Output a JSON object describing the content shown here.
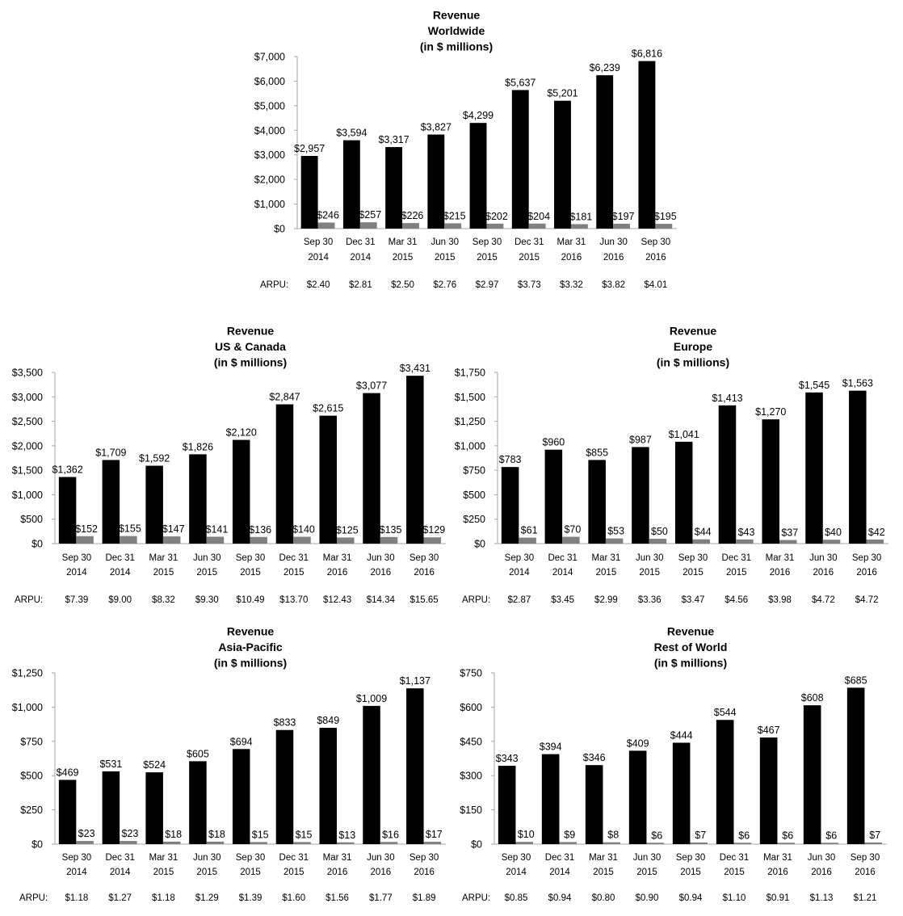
{
  "chart_data": [
    {
      "type": "bar",
      "title": [
        "Revenue",
        "Worldwide",
        "(in $ millions)"
      ],
      "categories": [
        [
          "Sep 30",
          "2014"
        ],
        [
          "Dec 31",
          "2014"
        ],
        [
          "Mar 31",
          "2015"
        ],
        [
          "Jun 30",
          "2015"
        ],
        [
          "Sep 30",
          "2015"
        ],
        [
          "Dec 31",
          "2015"
        ],
        [
          "Mar 31",
          "2016"
        ],
        [
          "Jun 30",
          "2016"
        ],
        [
          "Sep 30",
          "2016"
        ]
      ],
      "series": [
        {
          "values": [
            2957,
            3594,
            3317,
            3827,
            4299,
            5637,
            5201,
            6239,
            6816
          ],
          "labels": [
            "$2,957",
            "$3,594",
            "$3,317",
            "$3,827",
            "$4,299",
            "$5,637",
            "$5,201",
            "$6,239",
            "$6,816"
          ],
          "color": "#000000"
        },
        {
          "values": [
            246,
            257,
            226,
            215,
            202,
            204,
            181,
            197,
            195
          ],
          "labels": [
            "$246",
            "$257",
            "$226",
            "$215",
            "$202",
            "$204",
            "$181",
            "$197",
            "$195"
          ],
          "color": "#808080"
        }
      ],
      "ylim": [
        0,
        7000
      ],
      "yticks": [
        0,
        1000,
        2000,
        3000,
        4000,
        5000,
        6000,
        7000
      ],
      "ytick_labels": [
        "$0",
        "$1,000",
        "$2,000",
        "$3,000",
        "$4,000",
        "$5,000",
        "$6,000",
        "$7,000"
      ],
      "arpu_label": "ARPU:",
      "arpu": [
        "$2.40",
        "$2.81",
        "$2.50",
        "$2.76",
        "$2.97",
        "$3.73",
        "$3.32",
        "$3.82",
        "$4.01"
      ],
      "grid": false,
      "legend": "none"
    },
    {
      "type": "bar",
      "title": [
        "Revenue",
        "US & Canada",
        "(in $ millions)"
      ],
      "categories": [
        [
          "Sep 30",
          "2014"
        ],
        [
          "Dec 31",
          "2014"
        ],
        [
          "Mar 31",
          "2015"
        ],
        [
          "Jun 30",
          "2015"
        ],
        [
          "Sep 30",
          "2015"
        ],
        [
          "Dec 31",
          "2015"
        ],
        [
          "Mar 31",
          "2016"
        ],
        [
          "Jun 30",
          "2016"
        ],
        [
          "Sep 30",
          "2016"
        ]
      ],
      "series": [
        {
          "values": [
            1362,
            1709,
            1592,
            1826,
            2120,
            2847,
            2615,
            3077,
            3431
          ],
          "labels": [
            "$1,362",
            "$1,709",
            "$1,592",
            "$1,826",
            "$2,120",
            "$2,847",
            "$2,615",
            "$3,077",
            "$3,431"
          ],
          "color": "#000000"
        },
        {
          "values": [
            152,
            155,
            147,
            141,
            136,
            140,
            125,
            135,
            129
          ],
          "labels": [
            "$152",
            "$155",
            "$147",
            "$141",
            "$136",
            "$140",
            "$125",
            "$135",
            "$129"
          ],
          "color": "#808080"
        }
      ],
      "ylim": [
        0,
        3500
      ],
      "yticks": [
        0,
        500,
        1000,
        1500,
        2000,
        2500,
        3000,
        3500
      ],
      "ytick_labels": [
        "$0",
        "$500",
        "$1,000",
        "$1,500",
        "$2,000",
        "$2,500",
        "$3,000",
        "$3,500"
      ],
      "arpu_label": "ARPU:",
      "arpu": [
        "$7.39",
        "$9.00",
        "$8.32",
        "$9.30",
        "$10.49",
        "$13.70",
        "$12.43",
        "$14.34",
        "$15.65"
      ],
      "grid": false,
      "legend": "none"
    },
    {
      "type": "bar",
      "title": [
        "Revenue",
        "Europe",
        "(in $ millions)"
      ],
      "categories": [
        [
          "Sep 30",
          "2014"
        ],
        [
          "Dec 31",
          "2014"
        ],
        [
          "Mar 31",
          "2015"
        ],
        [
          "Jun 30",
          "2015"
        ],
        [
          "Sep 30",
          "2015"
        ],
        [
          "Dec 31",
          "2015"
        ],
        [
          "Mar 31",
          "2016"
        ],
        [
          "Jun 30",
          "2016"
        ],
        [
          "Sep 30",
          "2016"
        ]
      ],
      "series": [
        {
          "values": [
            783,
            960,
            855,
            987,
            1041,
            1413,
            1270,
            1545,
            1563
          ],
          "labels": [
            "$783",
            "$960",
            "$855",
            "$987",
            "$1,041",
            "$1,413",
            "$1,270",
            "$1,545",
            "$1,563"
          ],
          "color": "#000000"
        },
        {
          "values": [
            61,
            70,
            53,
            50,
            44,
            43,
            37,
            40,
            42
          ],
          "labels": [
            "$61",
            "$70",
            "$53",
            "$50",
            "$44",
            "$43",
            "$37",
            "$40",
            "$42"
          ],
          "color": "#808080"
        }
      ],
      "ylim": [
        0,
        1750
      ],
      "yticks": [
        0,
        250,
        500,
        750,
        1000,
        1250,
        1500,
        1750
      ],
      "ytick_labels": [
        "$0",
        "$250",
        "$500",
        "$750",
        "$1,000",
        "$1,250",
        "$1,500",
        "$1,750"
      ],
      "arpu_label": "ARPU:",
      "arpu": [
        "$2.87",
        "$3.45",
        "$2.99",
        "$3.36",
        "$3.47",
        "$4.56",
        "$3.98",
        "$4.72",
        "$4.72"
      ],
      "grid": false,
      "legend": "none"
    },
    {
      "type": "bar",
      "title": [
        "Revenue",
        "Asia-Pacific",
        "(in $ millions)"
      ],
      "categories": [
        [
          "Sep 30",
          "2014"
        ],
        [
          "Dec 31",
          "2014"
        ],
        [
          "Mar 31",
          "2015"
        ],
        [
          "Jun 30",
          "2015"
        ],
        [
          "Sep 30",
          "2015"
        ],
        [
          "Dec 31",
          "2015"
        ],
        [
          "Mar 31",
          "2016"
        ],
        [
          "Jun 30",
          "2016"
        ],
        [
          "Sep 30",
          "2016"
        ]
      ],
      "series": [
        {
          "values": [
            469,
            531,
            524,
            605,
            694,
            833,
            849,
            1009,
            1137
          ],
          "labels": [
            "$469",
            "$531",
            "$524",
            "$605",
            "$694",
            "$833",
            "$849",
            "$1,009",
            "$1,137"
          ],
          "color": "#000000"
        },
        {
          "values": [
            23,
            23,
            18,
            18,
            15,
            15,
            13,
            16,
            17
          ],
          "labels": [
            "$23",
            "$23",
            "$18",
            "$18",
            "$15",
            "$15",
            "$13",
            "$16",
            "$17"
          ],
          "color": "#808080"
        }
      ],
      "ylim": [
        0,
        1250
      ],
      "yticks": [
        0,
        250,
        500,
        750,
        1000,
        1250
      ],
      "ytick_labels": [
        "$0",
        "$250",
        "$500",
        "$750",
        "$1,000",
        "$1,250"
      ],
      "arpu_label": "ARPU:",
      "arpu": [
        "$1.18",
        "$1.27",
        "$1.18",
        "$1.29",
        "$1.39",
        "$1.60",
        "$1.56",
        "$1.77",
        "$1.89"
      ],
      "grid": false,
      "legend": "none"
    },
    {
      "type": "bar",
      "title": [
        "Revenue",
        "Rest of World",
        "(in $ millions)"
      ],
      "categories": [
        [
          "Sep 30",
          "2014"
        ],
        [
          "Dec 31",
          "2014"
        ],
        [
          "Mar 31",
          "2015"
        ],
        [
          "Jun 30",
          "2015"
        ],
        [
          "Sep 30",
          "2015"
        ],
        [
          "Dec 31",
          "2015"
        ],
        [
          "Mar 31",
          "2016"
        ],
        [
          "Jun 30",
          "2016"
        ],
        [
          "Sep 30",
          "2016"
        ]
      ],
      "series": [
        {
          "values": [
            343,
            394,
            346,
            409,
            444,
            544,
            467,
            608,
            685
          ],
          "labels": [
            "$343",
            "$394",
            "$346",
            "$409",
            "$444",
            "$544",
            "$467",
            "$608",
            "$685"
          ],
          "color": "#000000"
        },
        {
          "values": [
            10,
            9,
            8,
            6,
            7,
            6,
            6,
            6,
            7
          ],
          "labels": [
            "$10",
            "$9",
            "$8",
            "$6",
            "$7",
            "$6",
            "$6",
            "$6",
            "$7"
          ],
          "color": "#808080"
        }
      ],
      "ylim": [
        0,
        750
      ],
      "yticks": [
        0,
        150,
        300,
        450,
        600,
        750
      ],
      "ytick_labels": [
        "$0",
        "$150",
        "$300",
        "$450",
        "$600",
        "$750"
      ],
      "arpu_label": "ARPU:",
      "arpu": [
        "$0.85",
        "$0.94",
        "$0.80",
        "$0.90",
        "$0.94",
        "$1.10",
        "$0.91",
        "$1.13",
        "$1.21"
      ],
      "grid": false,
      "legend": "none"
    }
  ]
}
